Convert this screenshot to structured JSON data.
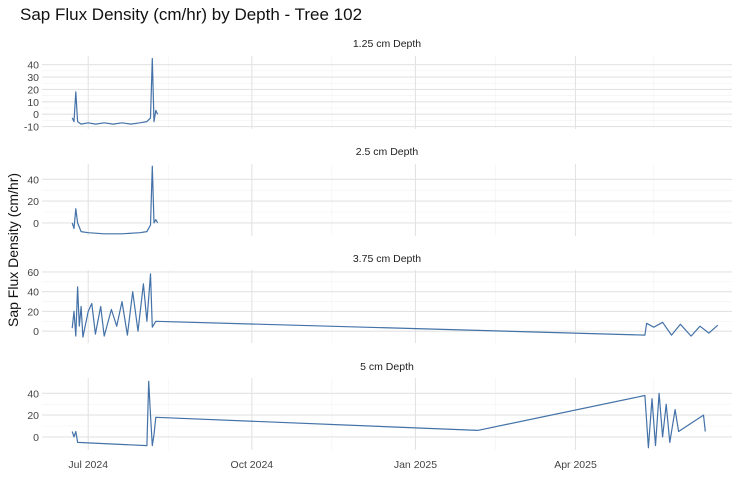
{
  "chart_data": {
    "type": "line",
    "title": "Sap Flux Density (cm/hr) by Depth - Tree 102",
    "ylabel": "Sap Flux Density (cm/hr)",
    "xlabel": "",
    "line_color": "#4472a8",
    "x_ticks": [
      "Jul 2024",
      "Oct 2024",
      "Jan 2025",
      "Apr 2025"
    ],
    "x_range": [
      "2024-06-05",
      "2025-06-28"
    ],
    "grid": true,
    "panels": [
      {
        "name": "1.25 cm Depth",
        "ylim": [
          -12,
          47
        ],
        "yticks": [
          40,
          30,
          20,
          10,
          0,
          -10
        ],
        "series": [
          [
            "2024-06-22",
            -3
          ],
          [
            "2024-06-23",
            -6
          ],
          [
            "2024-06-24",
            18
          ],
          [
            "2024-06-25",
            -6
          ],
          [
            "2024-06-27",
            -8
          ],
          [
            "2024-07-01",
            -7
          ],
          [
            "2024-07-05",
            -8
          ],
          [
            "2024-07-10",
            -7
          ],
          [
            "2024-07-15",
            -8
          ],
          [
            "2024-07-20",
            -7
          ],
          [
            "2024-07-25",
            -8
          ],
          [
            "2024-07-30",
            -7
          ],
          [
            "2024-08-03",
            -6
          ],
          [
            "2024-08-05",
            -3
          ],
          [
            "2024-08-06",
            45
          ],
          [
            "2024-08-07",
            -6
          ],
          [
            "2024-08-08",
            3
          ],
          [
            "2024-08-09",
            0
          ]
        ]
      },
      {
        "name": "2.5 cm Depth",
        "ylim": [
          -12,
          54
        ],
        "yticks": [
          40,
          20,
          0
        ],
        "series": [
          [
            "2024-06-22",
            0
          ],
          [
            "2024-06-23",
            -5
          ],
          [
            "2024-06-24",
            13
          ],
          [
            "2024-06-25",
            0
          ],
          [
            "2024-06-27",
            -8
          ],
          [
            "2024-07-01",
            -9
          ],
          [
            "2024-07-10",
            -10
          ],
          [
            "2024-07-20",
            -10
          ],
          [
            "2024-07-30",
            -9
          ],
          [
            "2024-08-03",
            -8
          ],
          [
            "2024-08-05",
            -2
          ],
          [
            "2024-08-06",
            52
          ],
          [
            "2024-08-07",
            0
          ],
          [
            "2024-08-08",
            3
          ],
          [
            "2024-08-09",
            0
          ]
        ]
      },
      {
        "name": "3.75 cm Depth",
        "ylim": [
          -12,
          62
        ],
        "yticks": [
          60,
          40,
          20,
          0
        ],
        "series": [
          [
            "2024-06-22",
            3
          ],
          [
            "2024-06-23",
            20
          ],
          [
            "2024-06-24",
            -5
          ],
          [
            "2024-06-25",
            45
          ],
          [
            "2024-06-26",
            5
          ],
          [
            "2024-06-27",
            25
          ],
          [
            "2024-06-28",
            -6
          ],
          [
            "2024-07-01",
            20
          ],
          [
            "2024-07-03",
            28
          ],
          [
            "2024-07-05",
            -3
          ],
          [
            "2024-07-08",
            25
          ],
          [
            "2024-07-10",
            -5
          ],
          [
            "2024-07-14",
            22
          ],
          [
            "2024-07-17",
            5
          ],
          [
            "2024-07-20",
            30
          ],
          [
            "2024-07-23",
            -4
          ],
          [
            "2024-07-26",
            40
          ],
          [
            "2024-07-29",
            0
          ],
          [
            "2024-08-01",
            48
          ],
          [
            "2024-08-03",
            10
          ],
          [
            "2024-08-05",
            58
          ],
          [
            "2024-08-06",
            4
          ],
          [
            "2024-08-08",
            10
          ],
          [
            "2025-05-10",
            -4
          ],
          [
            "2025-05-11",
            8
          ],
          [
            "2025-05-15",
            4
          ],
          [
            "2025-05-20",
            9
          ],
          [
            "2025-05-25",
            -4
          ],
          [
            "2025-05-30",
            7
          ],
          [
            "2025-06-05",
            -5
          ],
          [
            "2025-06-10",
            5
          ],
          [
            "2025-06-15",
            -2
          ],
          [
            "2025-06-20",
            6
          ]
        ]
      },
      {
        "name": "5 cm Depth",
        "ylim": [
          -12,
          54
        ],
        "yticks": [
          40,
          20,
          0
        ],
        "series": [
          [
            "2024-06-22",
            5
          ],
          [
            "2024-06-23",
            0
          ],
          [
            "2024-06-24",
            5
          ],
          [
            "2024-06-25",
            -5
          ],
          [
            "2024-08-03",
            -8
          ],
          [
            "2024-08-04",
            51
          ],
          [
            "2024-08-05",
            20
          ],
          [
            "2024-08-06",
            -8
          ],
          [
            "2024-08-07",
            2
          ],
          [
            "2024-08-08",
            18
          ],
          [
            "2025-02-05",
            6
          ],
          [
            "2025-05-10",
            38
          ],
          [
            "2025-05-12",
            -10
          ],
          [
            "2025-05-14",
            35
          ],
          [
            "2025-05-16",
            -8
          ],
          [
            "2025-05-18",
            40
          ],
          [
            "2025-05-20",
            0
          ],
          [
            "2025-05-22",
            30
          ],
          [
            "2025-05-24",
            -5
          ],
          [
            "2025-05-27",
            25
          ],
          [
            "2025-05-29",
            5
          ],
          [
            "2025-06-12",
            20
          ],
          [
            "2025-06-13",
            5
          ]
        ]
      }
    ]
  }
}
